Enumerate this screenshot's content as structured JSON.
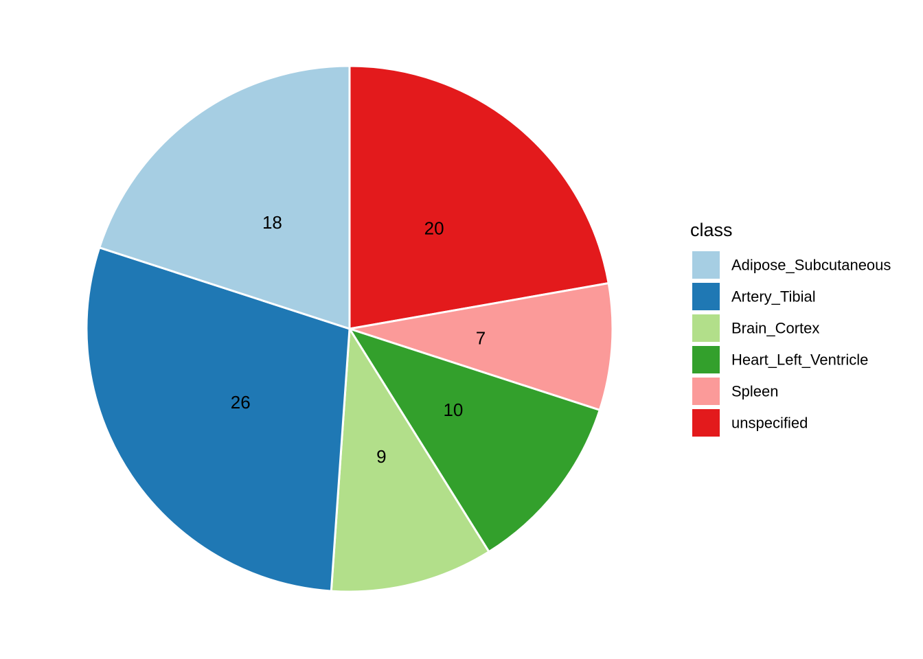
{
  "chart_data": {
    "type": "pie",
    "legend_title": "class",
    "legend_position": "right",
    "categories": [
      "Adipose_Subcutaneous",
      "Artery_Tibial",
      "Brain_Cortex",
      "Heart_Left_Ventricle",
      "Spleen",
      "unspecified"
    ],
    "values": [
      18,
      26,
      9,
      10,
      7,
      20
    ],
    "colors": [
      "#a6cee3",
      "#1f78b4",
      "#b2df8a",
      "#33a02c",
      "#fb9a99",
      "#e31a1c"
    ],
    "slice_order_clockwise_from_top": [
      "unspecified",
      "Spleen",
      "Heart_Left_Ventricle",
      "Brain_Cortex",
      "Artery_Tibial",
      "Adipose_Subcutaneous"
    ]
  }
}
